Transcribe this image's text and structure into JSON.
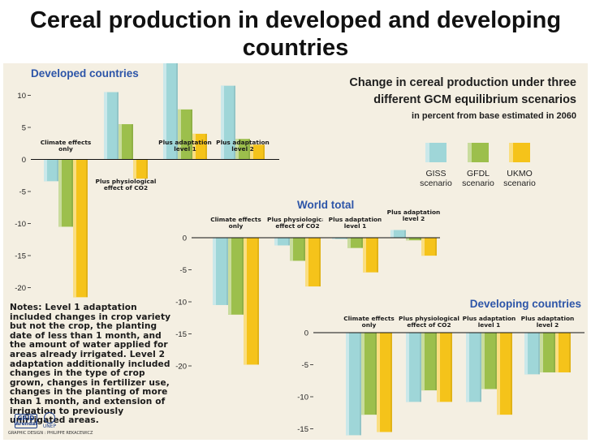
{
  "slide_title": "Cereal production in developed and developing countries",
  "colors": {
    "GISS": "#9fd6d8",
    "GFDL": "#9cbf4c",
    "UKMO": "#f5c31a",
    "heading": "#2d55a8",
    "background": "#f4efe2"
  },
  "notes": "Notes: Level 1 adaptation included changes in crop variety but not the crop, the planting date of less than 1 month, and the amount of water applied for areas already irrigated. Level 2 adaptation additionally included changes in the type of crop grown, changes in fertilizer use, changes in the planting of more than 1 month, and extension of irrigation to previously unirrigated areas.",
  "logos": {
    "grid_line1": "GRID",
    "grid_line2": "Arendal",
    "unep": "UNEP"
  },
  "design_credit": "GRAPHIC DESIGN : PHILIPPE REKACEWICZ",
  "chart_data": {
    "title": "Change in cereal production under three different GCM equilibrium scenarios",
    "subtitle": "in percent from base estimated in 2060",
    "legend": [
      {
        "name": "GISS",
        "caption": "scenario",
        "color": "#9fd6d8"
      },
      {
        "name": "GFDL",
        "caption": "scenario",
        "color": "#9cbf4c"
      },
      {
        "name": "UKMO",
        "caption": "scenario",
        "color": "#f5c31a"
      }
    ],
    "charts": [
      {
        "type": "bar",
        "title": "Developed countries",
        "categories": [
          "Climate effects only",
          "Plus physiological effect of CO2",
          "Plus adaptation level 1",
          "Plus adaptation level 2"
        ],
        "category_label_position": [
          "above",
          "below",
          "above",
          "above"
        ],
        "series": [
          {
            "name": "GISS",
            "values": [
              -3.4,
              10.5,
              15,
              11.5
            ]
          },
          {
            "name": "GFDL",
            "values": [
              -10.5,
              5.5,
              7.8,
              3.2
            ]
          },
          {
            "name": "UKMO",
            "values": [
              -21.5,
              -3,
              4,
              2.3
            ]
          }
        ],
        "yticks": [
          10,
          5,
          0,
          -5,
          -10,
          -15,
          -20
        ],
        "ylim": [
          -22,
          15
        ]
      },
      {
        "type": "bar",
        "title": "World total",
        "categories": [
          "Climate effects only",
          "Plus physiological effect of CO2",
          "Plus adaptation level 1",
          "Plus adaptation level 2"
        ],
        "series": [
          {
            "name": "GISS",
            "values": [
              -10.5,
              -1.2,
              -0.2,
              1.2
            ]
          },
          {
            "name": "GFDL",
            "values": [
              -12,
              -3.6,
              -1.6,
              -0.4
            ]
          },
          {
            "name": "UKMO",
            "values": [
              -19.8,
              -7.6,
              -5.4,
              -2.8
            ]
          }
        ],
        "yticks": [
          0,
          -5,
          -10,
          -15,
          -20
        ],
        "ylim": [
          -20,
          1.5
        ]
      },
      {
        "type": "bar",
        "title": "Developing countries",
        "categories": [
          "Climate effects only",
          "Plus physiological effect of CO2",
          "Plus adaptation level 1",
          "Plus adaptation level 2"
        ],
        "series": [
          {
            "name": "GISS",
            "values": [
              -16,
              -10.8,
              -10.8,
              -6.5
            ]
          },
          {
            "name": "GFDL",
            "values": [
              -12.8,
              -9,
              -8.8,
              -6.2
            ]
          },
          {
            "name": "UKMO",
            "values": [
              -15.5,
              -10.8,
              -12.8,
              -6.2
            ]
          }
        ],
        "yticks": [
          0,
          -5,
          -10,
          -15
        ],
        "ylim": [
          -16,
          0
        ]
      }
    ]
  }
}
